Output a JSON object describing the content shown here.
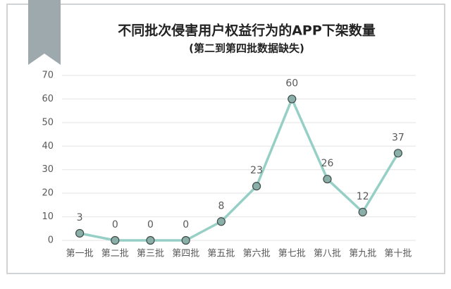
{
  "chart_data": {
    "type": "line",
    "title": "不同批次侵害用户权益行为的APP下架数量",
    "subtitle": "(第二到第四批数据缺失)",
    "categories": [
      "第一批",
      "第二批",
      "第三批",
      "第四批",
      "第五批",
      "第六批",
      "第七批",
      "第八批",
      "第九批",
      "第十批"
    ],
    "values": [
      3,
      0,
      0,
      0,
      8,
      23,
      60,
      26,
      12,
      37
    ],
    "color": "#95cfc5",
    "ylim": [
      0,
      70
    ],
    "yticks": [
      0,
      10,
      20,
      30,
      40,
      50,
      60,
      70
    ],
    "grid": true
  }
}
